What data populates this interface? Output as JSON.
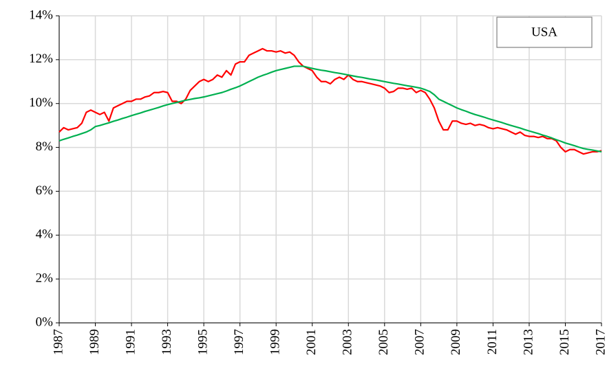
{
  "chart_data": {
    "type": "line",
    "annotation": "USA",
    "x": [
      1987,
      1987.25,
      1987.5,
      1987.75,
      1988,
      1988.25,
      1988.5,
      1988.75,
      1989,
      1989.25,
      1989.5,
      1989.75,
      1990,
      1990.25,
      1990.5,
      1990.75,
      1991,
      1991.25,
      1991.5,
      1991.75,
      1992,
      1992.25,
      1992.5,
      1992.75,
      1993,
      1993.25,
      1993.5,
      1993.75,
      1994,
      1994.25,
      1994.5,
      1994.75,
      1995,
      1995.25,
      1995.5,
      1995.75,
      1996,
      1996.25,
      1996.5,
      1996.75,
      1997,
      1997.25,
      1997.5,
      1997.75,
      1998,
      1998.25,
      1998.5,
      1998.75,
      1999,
      1999.25,
      1999.5,
      1999.75,
      2000,
      2000.25,
      2000.5,
      2000.75,
      2001,
      2001.25,
      2001.5,
      2001.75,
      2002,
      2002.25,
      2002.5,
      2002.75,
      2003,
      2003.25,
      2003.5,
      2003.75,
      2004,
      2004.25,
      2004.5,
      2004.75,
      2005,
      2005.25,
      2005.5,
      2005.75,
      2006,
      2006.25,
      2006.5,
      2006.75,
      2007,
      2007.25,
      2007.5,
      2007.75,
      2008,
      2008.25,
      2008.5,
      2008.75,
      2009,
      2009.25,
      2009.5,
      2009.75,
      2010,
      2010.25,
      2010.5,
      2010.75,
      2011,
      2011.25,
      2011.5,
      2011.75,
      2012,
      2012.25,
      2012.5,
      2012.75,
      2013,
      2013.25,
      2013.5,
      2013.75,
      2014,
      2014.25,
      2014.5,
      2014.75,
      2015,
      2015.25,
      2015.5,
      2015.75,
      2016,
      2016.25,
      2016.5,
      2016.75,
      2017
    ],
    "series": [
      {
        "color": "#ff0000",
        "values": [
          8.7,
          8.9,
          8.8,
          8.85,
          8.9,
          9.1,
          9.6,
          9.7,
          9.6,
          9.5,
          9.6,
          9.2,
          9.8,
          9.9,
          10.0,
          10.1,
          10.1,
          10.2,
          10.2,
          10.3,
          10.35,
          10.5,
          10.5,
          10.55,
          10.5,
          10.1,
          10.1,
          10.0,
          10.2,
          10.6,
          10.8,
          11.0,
          11.1,
          11.0,
          11.1,
          11.3,
          11.2,
          11.5,
          11.3,
          11.8,
          11.9,
          11.9,
          12.2,
          12.3,
          12.4,
          12.5,
          12.4,
          12.4,
          12.35,
          12.4,
          12.3,
          12.35,
          12.2,
          11.9,
          11.7,
          11.6,
          11.5,
          11.2,
          11.0,
          11.0,
          10.9,
          11.1,
          11.2,
          11.1,
          11.3,
          11.1,
          11.0,
          11.0,
          10.95,
          10.9,
          10.85,
          10.8,
          10.7,
          10.5,
          10.55,
          10.7,
          10.7,
          10.65,
          10.7,
          10.5,
          10.6,
          10.5,
          10.2,
          9.8,
          9.2,
          8.8,
          8.8,
          9.2,
          9.2,
          9.1,
          9.05,
          9.1,
          9.0,
          9.05,
          9.0,
          8.9,
          8.85,
          8.9,
          8.85,
          8.8,
          8.7,
          8.6,
          8.7,
          8.55,
          8.5,
          8.5,
          8.45,
          8.5,
          8.4,
          8.4,
          8.3,
          8.0,
          7.8,
          7.9,
          7.9,
          7.8,
          7.7,
          7.75,
          7.8,
          7.8,
          7.85
        ]
      },
      {
        "color": "#00b050",
        "values": [
          8.3,
          8.37,
          8.43,
          8.5,
          8.56,
          8.63,
          8.7,
          8.8,
          8.95,
          9.0,
          9.06,
          9.12,
          9.19,
          9.25,
          9.32,
          9.38,
          9.45,
          9.51,
          9.57,
          9.64,
          9.7,
          9.76,
          9.82,
          9.89,
          9.95,
          10.0,
          10.05,
          10.1,
          10.15,
          10.19,
          10.23,
          10.26,
          10.3,
          10.35,
          10.4,
          10.45,
          10.5,
          10.57,
          10.65,
          10.72,
          10.8,
          10.9,
          11.0,
          11.1,
          11.2,
          11.28,
          11.35,
          11.43,
          11.5,
          11.55,
          11.6,
          11.65,
          11.7,
          11.7,
          11.7,
          11.65,
          11.6,
          11.56,
          11.52,
          11.49,
          11.45,
          11.41,
          11.38,
          11.34,
          11.3,
          11.26,
          11.22,
          11.19,
          11.15,
          11.11,
          11.08,
          11.04,
          11.0,
          10.96,
          10.92,
          10.89,
          10.85,
          10.81,
          10.78,
          10.74,
          10.7,
          10.63,
          10.55,
          10.4,
          10.2,
          10.1,
          10.0,
          9.9,
          9.8,
          9.72,
          9.65,
          9.57,
          9.5,
          9.44,
          9.38,
          9.31,
          9.25,
          9.19,
          9.13,
          9.06,
          9.0,
          8.94,
          8.88,
          8.81,
          8.75,
          8.69,
          8.63,
          8.56,
          8.5,
          8.43,
          8.35,
          8.28,
          8.2,
          8.14,
          8.08,
          8.01,
          7.95,
          7.91,
          7.88,
          7.84,
          7.8
        ]
      }
    ],
    "xlim": [
      1987,
      2017
    ],
    "xticks": [
      1987,
      1989,
      1991,
      1993,
      1995,
      1997,
      1999,
      2001,
      2003,
      2005,
      2007,
      2009,
      2011,
      2013,
      2015,
      2017
    ],
    "ylim": [
      0,
      14
    ],
    "yticks": [
      {
        "value": 0,
        "label": "0%"
      },
      {
        "value": 2,
        "label": "2%"
      },
      {
        "value": 4,
        "label": "4%"
      },
      {
        "value": 6,
        "label": "6%"
      },
      {
        "value": 8,
        "label": "8%"
      },
      {
        "value": 10,
        "label": "10%"
      },
      {
        "value": 12,
        "label": "12%"
      },
      {
        "value": 14,
        "label": "14%"
      }
    ],
    "grid": true
  }
}
